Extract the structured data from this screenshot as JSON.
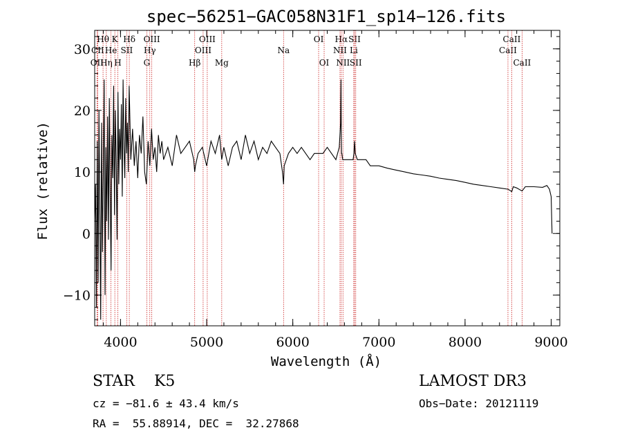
{
  "chart_data": {
    "type": "line",
    "title": "spec−56251−GAC058N31F1_sp14−126.fits",
    "xlabel": "Wavelength (Å)",
    "ylabel": "Flux (relative)",
    "xlim": [
      3700,
      9100
    ],
    "ylim": [
      -15,
      33
    ],
    "xticks": [
      4000,
      5000,
      6000,
      7000,
      8000,
      9000
    ],
    "xtick_labels": [
      "4000",
      "5000",
      "6000",
      "7000",
      "8000",
      "9000"
    ],
    "yticks": [
      -10,
      0,
      10,
      20,
      30
    ],
    "ytick_labels": [
      "−10",
      "0",
      "10",
      "20",
      "30"
    ],
    "series": [
      {
        "name": "spectrum",
        "x": [
          3700,
          3710,
          3720,
          3730,
          3740,
          3750,
          3760,
          3770,
          3780,
          3790,
          3800,
          3810,
          3820,
          3830,
          3840,
          3850,
          3860,
          3870,
          3880,
          3890,
          3900,
          3910,
          3920,
          3930,
          3940,
          3950,
          3960,
          3970,
          3980,
          3990,
          4000,
          4010,
          4020,
          4030,
          4040,
          4050,
          4060,
          4070,
          4080,
          4090,
          4100,
          4120,
          4140,
          4160,
          4180,
          4200,
          4220,
          4240,
          4260,
          4280,
          4300,
          4320,
          4340,
          4360,
          4380,
          4400,
          4420,
          4440,
          4460,
          4480,
          4500,
          4550,
          4600,
          4650,
          4700,
          4750,
          4800,
          4850,
          4861,
          4870,
          4900,
          4950,
          5000,
          5050,
          5100,
          5150,
          5175,
          5200,
          5250,
          5300,
          5350,
          5400,
          5450,
          5500,
          5550,
          5600,
          5650,
          5700,
          5750,
          5800,
          5850,
          5880,
          5893,
          5900,
          5950,
          6000,
          6050,
          6100,
          6150,
          6200,
          6250,
          6300,
          6350,
          6400,
          6450,
          6500,
          6540,
          6555,
          6560,
          6563,
          6566,
          6570,
          6580,
          6600,
          6650,
          6700,
          6710,
          6717,
          6725,
          6750,
          6800,
          6850,
          6900,
          6950,
          7000,
          7100,
          7200,
          7300,
          7400,
          7500,
          7600,
          7700,
          7800,
          7900,
          8000,
          8100,
          8200,
          8300,
          8400,
          8500,
          8542,
          8560,
          8600,
          8662,
          8700,
          8800,
          8900,
          8950,
          8980,
          9000,
          9010
        ],
        "values": [
          2,
          8,
          -12,
          15,
          -8,
          20,
          3,
          -14,
          18,
          -3,
          10,
          25,
          -10,
          14,
          2,
          19,
          -1,
          22,
          7,
          -6,
          16,
          9,
          24,
          3,
          20,
          11,
          -1,
          23,
          8,
          17,
          12,
          21,
          6,
          25,
          14,
          9,
          22,
          13,
          18,
          10,
          24,
          12,
          17,
          11,
          15,
          9,
          16,
          13,
          19,
          10,
          8,
          15,
          11,
          17,
          12,
          14,
          10,
          16,
          13,
          15,
          12,
          14,
          11,
          16,
          13,
          14,
          15,
          12,
          10,
          11,
          13,
          14,
          11,
          15,
          13,
          16,
          12,
          14,
          11,
          14,
          15,
          12,
          16,
          13,
          15,
          12,
          14,
          13,
          15,
          14,
          13,
          10,
          8,
          11,
          13,
          14,
          13,
          14,
          13,
          12,
          13,
          13,
          13,
          14,
          13,
          12,
          14,
          18,
          25,
          16,
          13,
          13,
          12,
          12,
          12,
          12,
          13,
          15,
          13,
          12,
          12,
          12,
          11,
          11,
          11,
          10.6,
          10.3,
          10.0,
          9.7,
          9.5,
          9.3,
          9.0,
          8.8,
          8.6,
          8.3,
          8.0,
          7.8,
          7.6,
          7.4,
          7.2,
          6.8,
          7.6,
          7.4,
          6.9,
          7.6,
          7.6,
          7.5,
          7.8,
          7.2,
          6,
          0
        ]
      }
    ],
    "lines": [
      {
        "name": "Hθ",
        "x": 3797,
        "row": 1
      },
      {
        "name": "OII",
        "x": 3727,
        "row": 3
      },
      {
        "name": "CII",
        "x": 3735,
        "row": 2
      },
      {
        "name": "Hη",
        "x": 3835,
        "row": 3
      },
      {
        "name": "He",
        "x": 3889,
        "row": 2
      },
      {
        "name": "K",
        "x": 3934,
        "row": 1
      },
      {
        "name": "H",
        "x": 3969,
        "row": 3
      },
      {
        "name": "SII",
        "x": 4072,
        "row": 2
      },
      {
        "name": "Hδ",
        "x": 4102,
        "row": 1
      },
      {
        "name": "OIII",
        "x": 4363,
        "row": 1
      },
      {
        "name": "Hγ",
        "x": 4340,
        "row": 2
      },
      {
        "name": "G",
        "x": 4305,
        "row": 3
      },
      {
        "name": "Hβ",
        "x": 4861,
        "row": 3
      },
      {
        "name": "OIII",
        "x": 5007,
        "row": 1
      },
      {
        "name": "OIII",
        "x": 4959,
        "row": 2
      },
      {
        "name": "Mg",
        "x": 5175,
        "row": 3
      },
      {
        "name": "Na",
        "x": 5893,
        "row": 2
      },
      {
        "name": "OI",
        "x": 6300,
        "row": 1
      },
      {
        "name": "OI",
        "x": 6364,
        "row": 3
      },
      {
        "name": "Hα",
        "x": 6563,
        "row": 1
      },
      {
        "name": "NII",
        "x": 6548,
        "row": 2
      },
      {
        "name": "NII",
        "x": 6583,
        "row": 3
      },
      {
        "name": "SII",
        "x": 6717,
        "row": 1
      },
      {
        "name": "Li",
        "x": 6708,
        "row": 2
      },
      {
        "name": "SII",
        "x": 6731,
        "row": 3
      },
      {
        "name": "CaII",
        "x": 8498,
        "row": 2
      },
      {
        "name": "CaII",
        "x": 8542,
        "row": 1
      },
      {
        "name": "CaII",
        "x": 8662,
        "row": 3
      }
    ]
  },
  "info": {
    "class": "STAR    K5",
    "survey": "LAMOST DR3",
    "redshift": "cz = −81.6 ± 43.4 km/s",
    "obsdate": "Obs−Date: 20121119",
    "coords": "RA =  55.88914, DEC =  32.27868"
  }
}
